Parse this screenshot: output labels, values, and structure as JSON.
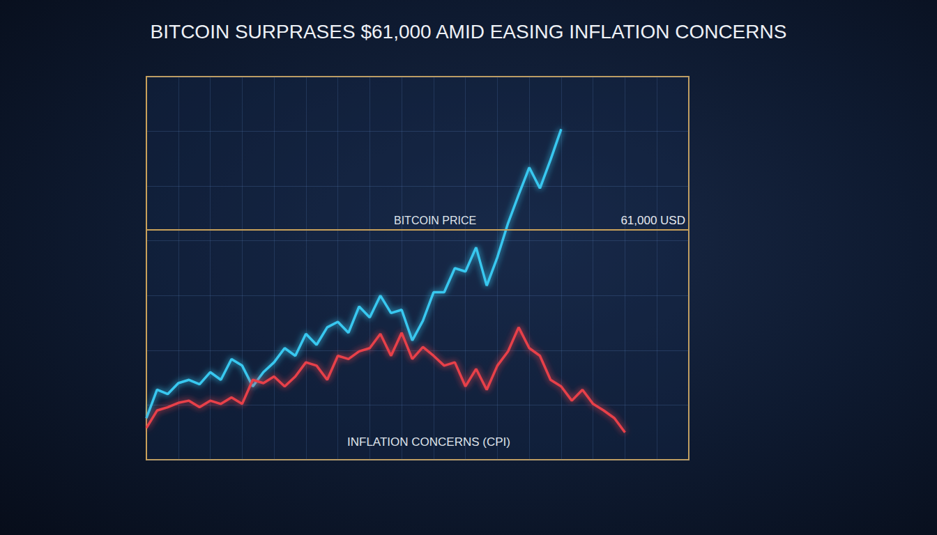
{
  "chart_data": {
    "type": "line",
    "title": "BITCOIN SURPRASES $61,000 AMID EASING INFLATION CONCERNS",
    "categories": [
      null,
      null,
      null,
      null,
      null,
      null,
      null,
      null,
      null,
      null,
      null,
      null,
      null,
      null,
      null,
      null,
      null,
      null,
      null,
      null,
      null,
      null,
      null,
      null,
      null,
      null,
      null,
      null,
      null,
      null,
      null,
      null,
      null,
      null,
      null,
      null,
      null,
      null,
      null,
      null,
      null,
      null,
      null,
      null,
      null,
      null,
      null,
      null,
      null,
      null,
      null,
      null
    ],
    "series": [
      {
        "name": "BITCOIN PRICE",
        "color": "#38c8f0",
        "values": [
          43800,
          46400,
          46000,
          47000,
          47300,
          46900,
          48000,
          47300,
          49200,
          48600,
          46700,
          48000,
          48900,
          50200,
          49500,
          51500,
          50500,
          52100,
          52600,
          51600,
          54000,
          53000,
          55000,
          53400,
          53700,
          50900,
          52700,
          55300,
          55300,
          57500,
          57200,
          59400,
          55900,
          58500,
          61600,
          64200,
          66700,
          64800,
          67400,
          70200,
          null,
          null,
          null,
          null,
          null,
          null,
          null,
          null,
          null,
          null,
          null,
          null
        ]
      },
      {
        "name": "INFLATION CONCERNS (CPI)",
        "color": "#e8404a",
        "values": [
          42900,
          44500,
          44800,
          45200,
          45400,
          44800,
          45400,
          45100,
          45700,
          45100,
          47300,
          47000,
          47600,
          46700,
          47600,
          48900,
          48600,
          47300,
          49500,
          49200,
          49900,
          50200,
          51500,
          49500,
          51600,
          49200,
          50300,
          49500,
          48600,
          48900,
          46700,
          48300,
          46400,
          48600,
          49900,
          52100,
          50200,
          49500,
          47300,
          46700,
          45400,
          46400,
          45100,
          44500,
          43800,
          42500,
          null,
          null,
          null,
          null,
          null,
          null
        ]
      }
    ],
    "reference_line": {
      "value": 61000,
      "label": "61,000 USD"
    },
    "ylim": [
      40000,
      75000
    ],
    "yticks": [
      40000,
      45000,
      50000,
      55000,
      60000,
      65000,
      70000,
      75000
    ],
    "grid": true,
    "tick_labels": false
  }
}
